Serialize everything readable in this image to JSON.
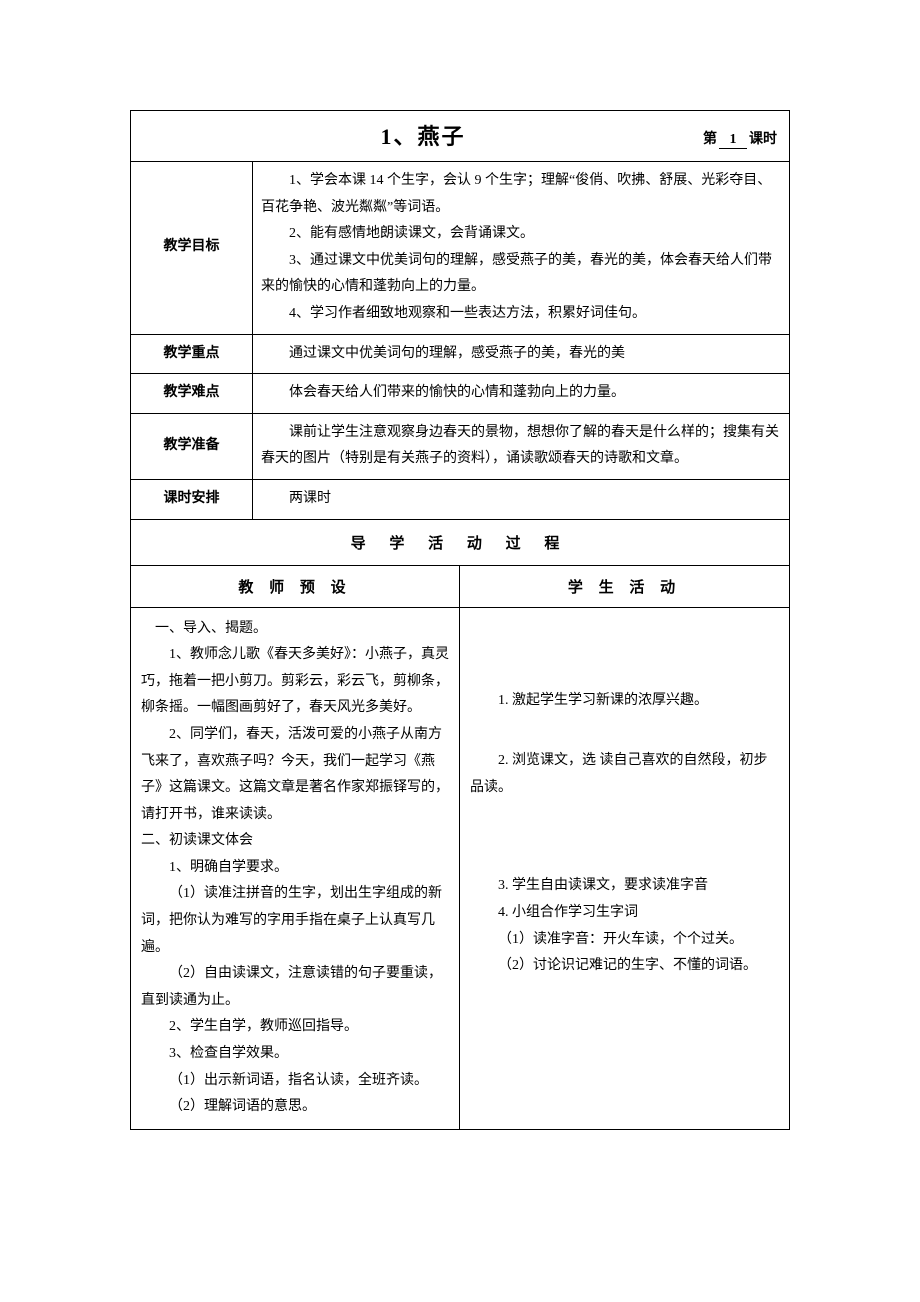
{
  "lesson": {
    "title": "1、燕子",
    "period_prefix": "第",
    "period_number": "1",
    "period_suffix": "课时"
  },
  "rows": {
    "goal": {
      "label": "教学目标",
      "lines": [
        "1、学会本课 14 个生字，会认 9 个生字；理解“俊俏、吹拂、舒展、光彩夺目、百花争艳、波光粼粼”等词语。",
        "2、能有感情地朗读课文，会背诵课文。",
        "3、通过课文中优美词句的理解，感受燕子的美，春光的美，体会春天给人们带来的愉快的心情和蓬勃向上的力量。",
        "4、学习作者细致地观察和一些表达方法，积累好词佳句。"
      ]
    },
    "keypoint": {
      "label": "教学重点",
      "text": "通过课文中优美词句的理解，感受燕子的美，春光的美"
    },
    "difficulty": {
      "label": "教学难点",
      "text": "体会春天给人们带来的愉快的心情和蓬勃向上的力量。"
    },
    "prep": {
      "label": "教学准备",
      "text": "课前让学生注意观察身边春天的景物，想想你了解的春天是什么样的；搜集有关春天的图片（特别是有关燕子的资料），诵读歌颂春天的诗歌和文章。"
    },
    "schedule": {
      "label": "课时安排",
      "text": "两课时"
    }
  },
  "process": {
    "header": "导 学 活 动 过 程",
    "left_header": "教 师 预 设",
    "right_header": "学 生 活 动",
    "teacher": {
      "h1": "一、导入、揭题。",
      "p1": "1、教师念儿歌《春天多美好》：小燕子，真灵巧，拖着一把小剪刀。剪彩云，彩云飞，剪柳条，柳条摇。一幅图画剪好了，春天风光多美好。",
      "p2": "2、同学们，春天，活泼可爱的小燕子从南方飞来了，喜欢燕子吗？今天，我们一起学习《燕子》这篇课文。这篇文章是著名作家郑振铎写的，请打开书，谁来读读。",
      "h2": "二、初读课文体会",
      "p3": "1、明确自学要求。",
      "p4": "（1）读准注拼音的生字，划出生字组成的新词，把你认为难写的字用手指在桌子上认真写几遍。",
      "p5": "（2）自由读课文，注意读错的句子要重读，直到读通为止。",
      "p6": "2、学生自学，教师巡回指导。",
      "p7": "3、检查自学效果。",
      "p8": "（1）出示新词语，指名认读，全班齐读。",
      "p9": "（2）理解词语的意思。"
    },
    "student": {
      "s1": "1. 激起学生学习新课的浓厚兴趣。",
      "s2": "2. 浏览课文，选 读自己喜欢的自然段，初步品读。",
      "s3": "3. 学生自由读课文，要求读准字音",
      "s4": "4. 小组合作学习生字词",
      "s5": "（1）读准字音：开火车读，个个过关。",
      "s6": "（2）讨论识记难记的生字、不懂的词语。"
    }
  }
}
